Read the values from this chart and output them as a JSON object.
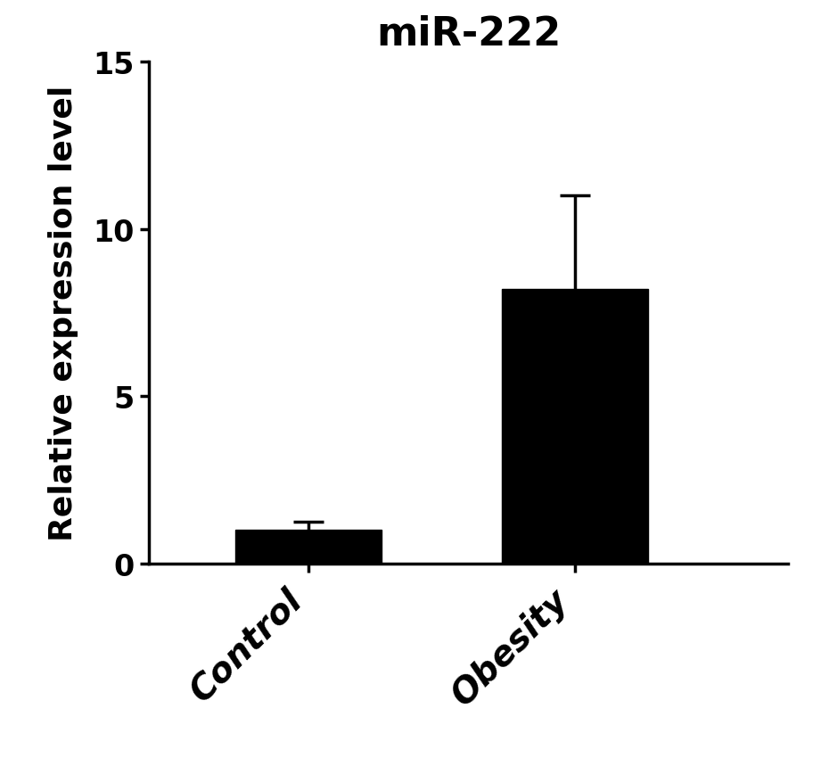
{
  "title": "miR-222",
  "ylabel": "Relative expression level",
  "categories": [
    "Control",
    "Obesity"
  ],
  "values": [
    1.0,
    8.2
  ],
  "errors": [
    0.25,
    2.8
  ],
  "bar_color": "#000000",
  "bar_width": 0.55,
  "ylim": [
    0,
    15
  ],
  "yticks": [
    0,
    5,
    10,
    15
  ],
  "title_fontsize": 32,
  "ylabel_fontsize": 26,
  "tick_fontsize": 24,
  "xtick_fontsize": 28,
  "background_color": "#ffffff",
  "error_capsize": 12,
  "error_linewidth": 2.5
}
